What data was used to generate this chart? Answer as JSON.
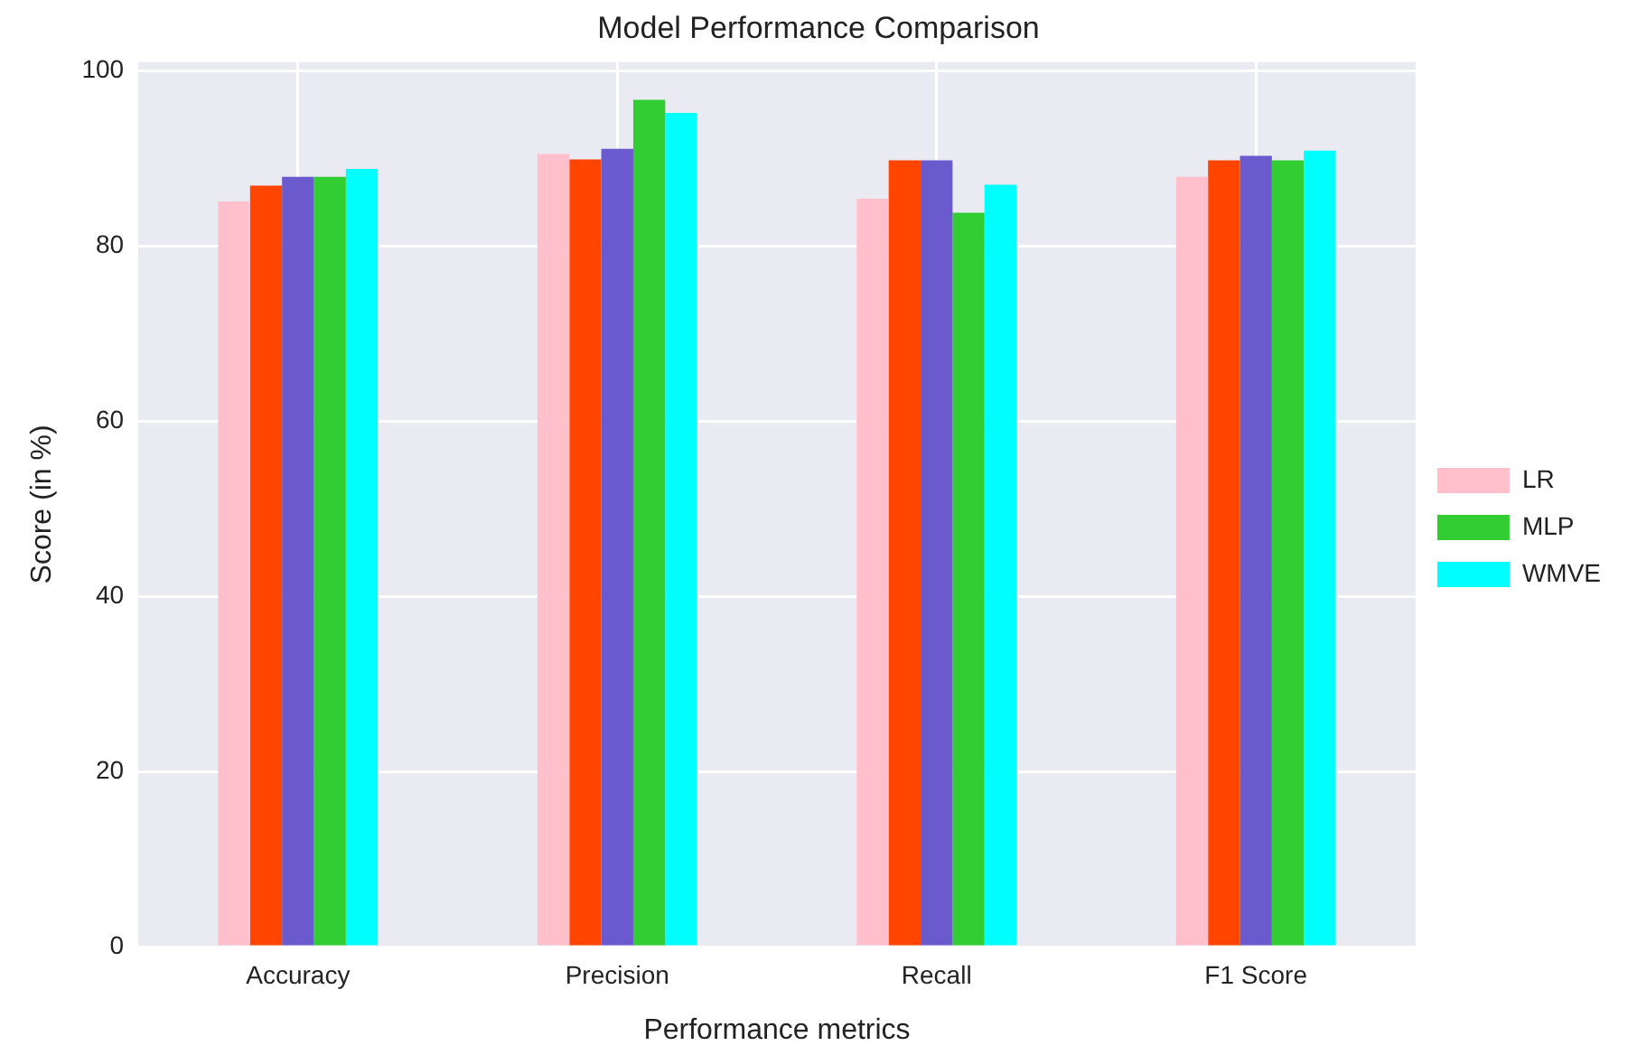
{
  "chart_data": {
    "type": "bar",
    "title": "Model Performance Comparison",
    "xlabel": "Performance metrics",
    "ylabel": "Score (in %)",
    "categories": [
      "Accuracy",
      "Precision",
      "Recall",
      "F1 Score"
    ],
    "series": [
      {
        "name": "LR",
        "color": "#ffc0cb",
        "values": [
          85.1,
          90.5,
          85.4,
          87.9
        ]
      },
      {
        "color": "#ff4500",
        "values": [
          86.9,
          89.9,
          89.8,
          89.8
        ]
      },
      {
        "color": "#6a5acd",
        "values": [
          87.9,
          91.1,
          89.8,
          90.3
        ]
      },
      {
        "name": "MLP",
        "color": "#32cd32",
        "values": [
          87.9,
          96.7,
          83.8,
          89.8
        ]
      },
      {
        "name": "WMVE",
        "color": "#00ffff",
        "values": [
          88.8,
          95.2,
          87.0,
          90.9
        ]
      }
    ],
    "ylim": [
      0,
      101
    ],
    "yticks": [
      0,
      20,
      40,
      60,
      80,
      100
    ],
    "grid": true,
    "legend": "right"
  }
}
